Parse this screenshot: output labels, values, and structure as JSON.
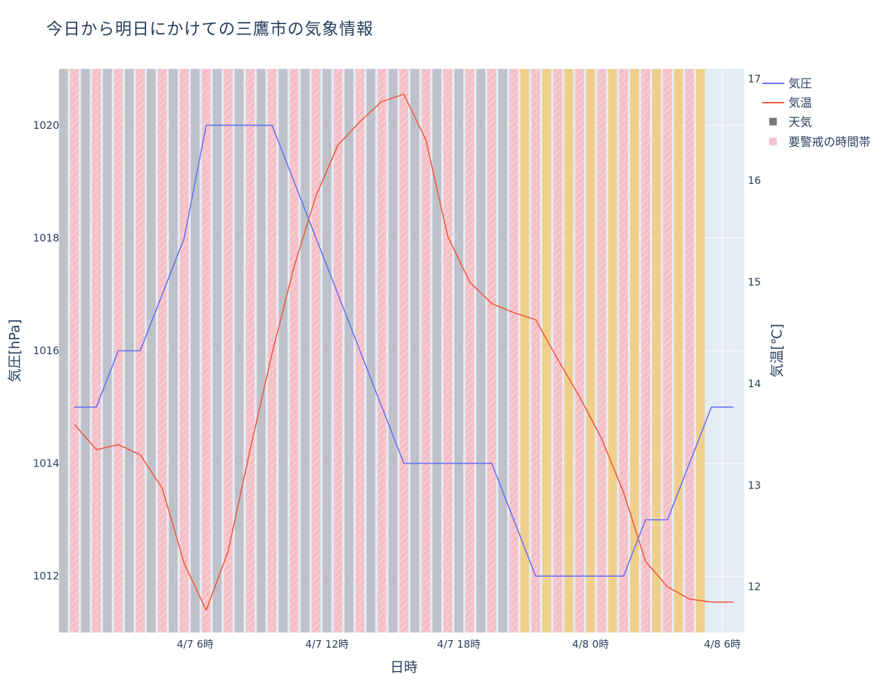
{
  "title": "今日から明日にかけての三鷹市の気象情報",
  "colors": {
    "pressure": "#636efa",
    "temperature": "#ef553b",
    "weather_cloudy": "#bfc1c8",
    "weather_sunny": "#f0cf8d",
    "alert": "#f4c0c6",
    "plot_bg": "#e5ecf6"
  },
  "chart_data": {
    "type": "line",
    "title": "今日から明日にかけての三鷹市の気象情報",
    "xlabel": "日時",
    "ylabel": "気圧[hPa]",
    "y2label": "気温[℃]",
    "xlim": [
      "2025-04-07 00:00",
      "2025-04-08 07:00"
    ],
    "ylim": [
      1011,
      1021
    ],
    "y2lim": [
      11.55,
      17.1
    ],
    "x_ticks": [
      {
        "x": "2025-04-07 06:00",
        "label": "4/7 6時"
      },
      {
        "x": "2025-04-07 12:00",
        "label": "4/7 12時"
      },
      {
        "x": "2025-04-07 18:00",
        "label": "4/7 18時"
      },
      {
        "x": "2025-04-08 00:00",
        "label": "4/8 0時"
      },
      {
        "x": "2025-04-08 06:00",
        "label": "4/8 6時"
      }
    ],
    "y_ticks": [
      1012,
      1014,
      1016,
      1018,
      1020
    ],
    "y2_ticks": [
      12,
      13,
      14,
      15,
      16,
      17
    ],
    "legend": [
      "気圧",
      "気温",
      "天気",
      "要警戒の時間帯"
    ],
    "legend_position": "top-right",
    "grid": true,
    "x": [
      "2025-04-07 00:00",
      "2025-04-07 01:00",
      "2025-04-07 02:00",
      "2025-04-07 03:00",
      "2025-04-07 04:00",
      "2025-04-07 05:00",
      "2025-04-07 06:00",
      "2025-04-07 07:00",
      "2025-04-07 08:00",
      "2025-04-07 09:00",
      "2025-04-07 10:00",
      "2025-04-07 11:00",
      "2025-04-07 12:00",
      "2025-04-07 13:00",
      "2025-04-07 14:00",
      "2025-04-07 15:00",
      "2025-04-07 16:00",
      "2025-04-07 17:00",
      "2025-04-07 18:00",
      "2025-04-07 19:00",
      "2025-04-07 20:00",
      "2025-04-07 21:00",
      "2025-04-07 22:00",
      "2025-04-07 23:00",
      "2025-04-08 00:00",
      "2025-04-08 01:00",
      "2025-04-08 02:00",
      "2025-04-08 03:00",
      "2025-04-08 04:00",
      "2025-04-08 05:00",
      "2025-04-08 06:00"
    ],
    "series": [
      {
        "name": "気圧",
        "axis": "y",
        "values": [
          1015,
          1015,
          1016,
          1016,
          1017,
          1018,
          1020,
          1020,
          1020,
          1020,
          1019,
          1018,
          1017,
          1016,
          1015,
          1014,
          1014,
          1014,
          1014,
          1014,
          1013,
          1012,
          1012,
          1012,
          1012,
          1012,
          1013,
          1013,
          1014,
          1015,
          1015
        ]
      },
      {
        "name": "気温",
        "axis": "y2",
        "values": [
          13.6,
          13.35,
          13.4,
          13.3,
          12.97,
          12.23,
          11.77,
          12.35,
          13.35,
          14.3,
          15.15,
          15.85,
          16.35,
          16.58,
          16.78,
          16.85,
          16.4,
          15.45,
          15.0,
          14.79,
          14.7,
          14.63,
          14.24,
          13.87,
          13.46,
          12.93,
          12.25,
          12.0,
          11.88,
          11.85,
          11.85
        ]
      }
    ],
    "weather_bars": {
      "name": "天気",
      "slots_per_hour": 1,
      "start": "2025-04-07 00:00",
      "values": [
        "曇",
        "曇",
        "曇",
        "曇",
        "曇",
        "曇",
        "曇",
        "曇",
        "曇",
        "曇",
        "曇",
        "曇",
        "曇",
        "曇",
        "曇",
        "曇",
        "曇",
        "曇",
        "曇",
        "曇",
        "曇",
        "晴",
        "晴",
        "晴",
        "晴",
        "晴",
        "晴",
        "晴",
        "晴",
        "晴"
      ]
    },
    "alert_periods": {
      "name": "要警戒の時間帯",
      "start": "2025-04-07 00:00",
      "active": [
        false,
        true,
        true,
        true,
        true,
        true,
        true,
        true,
        true,
        true,
        true,
        true,
        true,
        true,
        true,
        true,
        true,
        true,
        true,
        true,
        true,
        true,
        true,
        true,
        true,
        true,
        true,
        true,
        true,
        true
      ]
    }
  }
}
